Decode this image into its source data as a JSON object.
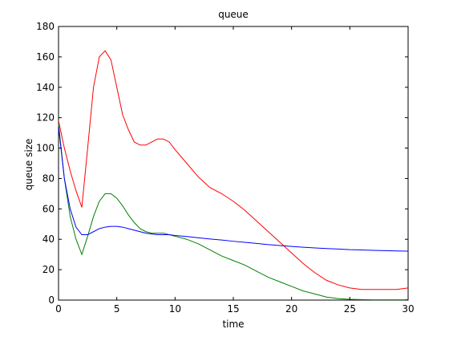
{
  "chart_data": {
    "type": "line",
    "title": "queue",
    "xlabel": "time",
    "ylabel": "queue size",
    "xlim": [
      0,
      30
    ],
    "ylim": [
      0,
      180
    ],
    "xticks": [
      0,
      5,
      10,
      15,
      20,
      25,
      30
    ],
    "yticks": [
      0,
      20,
      40,
      60,
      80,
      100,
      120,
      140,
      160,
      180
    ],
    "grid": false,
    "series": [
      {
        "color": "#ff0000",
        "x": [
          0,
          0.5,
          1,
          1.5,
          2,
          2.5,
          3,
          3.5,
          4,
          4.5,
          5,
          5.5,
          6,
          6.5,
          7,
          7.5,
          8,
          8.5,
          9,
          9.5,
          10,
          11,
          12,
          13,
          14,
          15,
          16,
          17,
          18,
          19,
          20,
          21,
          22,
          23,
          24,
          25,
          26,
          27,
          28,
          29,
          30
        ],
        "y": [
          118,
          100,
          85,
          72,
          61,
          100,
          140,
          160,
          164,
          158,
          140,
          122,
          112,
          104,
          102,
          102,
          104,
          106,
          106,
          104,
          99,
          90,
          81,
          74,
          70,
          65,
          59,
          52,
          45,
          38,
          31,
          24,
          18,
          13,
          10,
          8,
          7,
          7,
          7,
          7,
          8
        ]
      },
      {
        "color": "#008000",
        "x": [
          0,
          0.5,
          1,
          1.5,
          2,
          2.5,
          3,
          3.5,
          4,
          4.5,
          5,
          5.5,
          6,
          6.5,
          7,
          7.5,
          8,
          8.5,
          9,
          9.5,
          10,
          11,
          12,
          13,
          14,
          15,
          16,
          17,
          18,
          19,
          20,
          21,
          22,
          23,
          24,
          25,
          26,
          27,
          28,
          29,
          30
        ],
        "y": [
          116,
          80,
          55,
          40,
          30,
          42,
          55,
          65,
          70,
          70,
          67,
          62,
          56,
          51,
          47,
          45,
          44,
          44,
          44,
          43,
          42,
          40,
          37,
          33,
          29,
          26,
          23,
          19,
          15,
          12,
          9,
          6,
          4,
          2,
          1,
          0.5,
          0.3,
          0.2,
          0.2,
          0.2,
          0.2
        ]
      },
      {
        "color": "#0000ff",
        "x": [
          0,
          0.5,
          1,
          1.5,
          2,
          2.5,
          3,
          3.5,
          4,
          4.5,
          5,
          5.5,
          6,
          6.5,
          7,
          7.5,
          8,
          8.5,
          9,
          9.5,
          10,
          11,
          12,
          13,
          14,
          15,
          16,
          17,
          18,
          19,
          20,
          21,
          22,
          23,
          24,
          25,
          26,
          27,
          28,
          29,
          30
        ],
        "y": [
          114,
          80,
          60,
          48,
          43,
          43,
          45,
          47,
          48,
          48.5,
          48.5,
          48,
          47,
          46,
          45,
          44,
          43.5,
          43,
          43,
          43,
          42.5,
          41.8,
          41,
          40.2,
          39.5,
          38.7,
          38,
          37.3,
          36.5,
          35.9,
          35.3,
          34.8,
          34.3,
          33.9,
          33.6,
          33.2,
          33,
          32.7,
          32.5,
          32.3,
          32.2
        ]
      }
    ]
  }
}
